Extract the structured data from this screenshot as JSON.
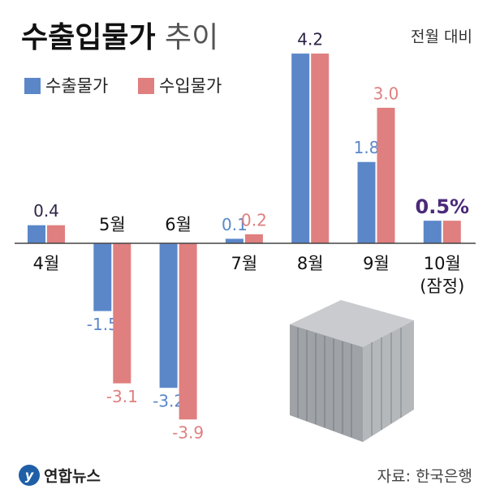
{
  "chart_data": {
    "type": "bar",
    "title": "수출입물가 추이",
    "subtitle": "전월 대비",
    "categories": [
      "4월",
      "5월",
      "6월",
      "7월",
      "8월",
      "9월",
      "10월 (잠정)"
    ],
    "series": [
      {
        "name": "수출물가",
        "color": "#5b87c9",
        "values": [
          0.4,
          -1.5,
          -3.2,
          0.1,
          4.2,
          1.8,
          0.5
        ],
        "value_labels": [
          "0.4",
          "-1.5",
          "-3.2",
          "0.1",
          "4.2",
          "1.8",
          "0.5%"
        ]
      },
      {
        "name": "수입물가",
        "color": "#e07f7f",
        "values": [
          0.4,
          -3.1,
          -3.9,
          0.2,
          4.2,
          3.0,
          0.5
        ],
        "value_labels": [
          null,
          "-3.1",
          "-3.9",
          "0.2",
          null,
          "3.0",
          null
        ]
      }
    ],
    "source": "자료: 한국은행",
    "logo": "연합뉴스"
  }
}
